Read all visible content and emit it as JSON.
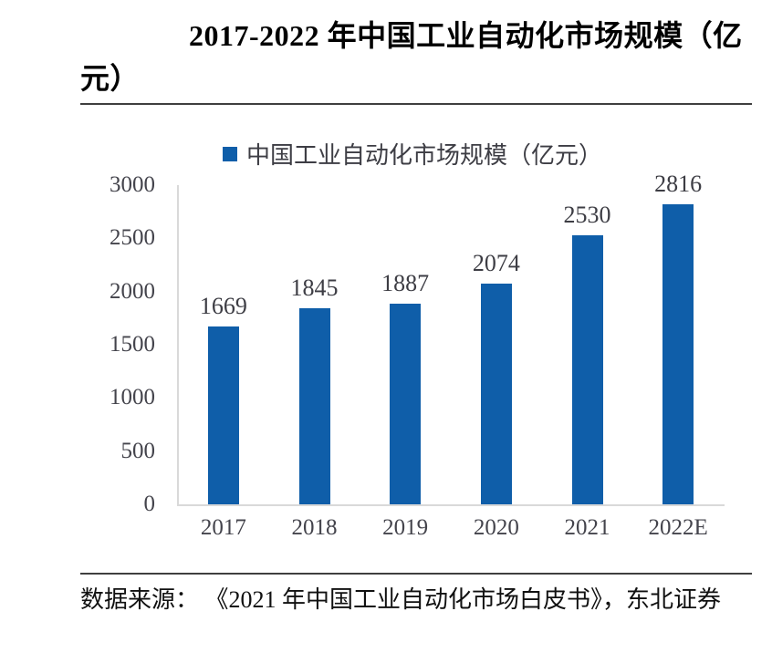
{
  "page": {
    "title": "2017-2022 年中国工业自动化市场规模（亿元）",
    "source": "数据来源：  《2021 年中国工业自动化市场白皮书》，东北证券"
  },
  "chart_data": {
    "type": "bar",
    "title": "2017-2022 年中国工业自动化市场规模（亿元）",
    "legend": [
      "中国工业自动化市场规模（亿元）"
    ],
    "legend_position": "top",
    "categories": [
      "2017",
      "2018",
      "2019",
      "2020",
      "2021",
      "2022E"
    ],
    "values": [
      1669,
      1845,
      1887,
      2074,
      2530,
      2816
    ],
    "ylim": [
      0,
      3000
    ],
    "yticks": [
      0,
      500,
      1000,
      1500,
      2000,
      2500,
      3000
    ],
    "grid": false,
    "data_labels": true,
    "bar_color": "#0f5ea9",
    "axis_line_color": "#d9d9d9",
    "value_label_color": "#3d3d44",
    "tick_label_color": "#44444c",
    "divider_color": "#3f3f3f"
  }
}
